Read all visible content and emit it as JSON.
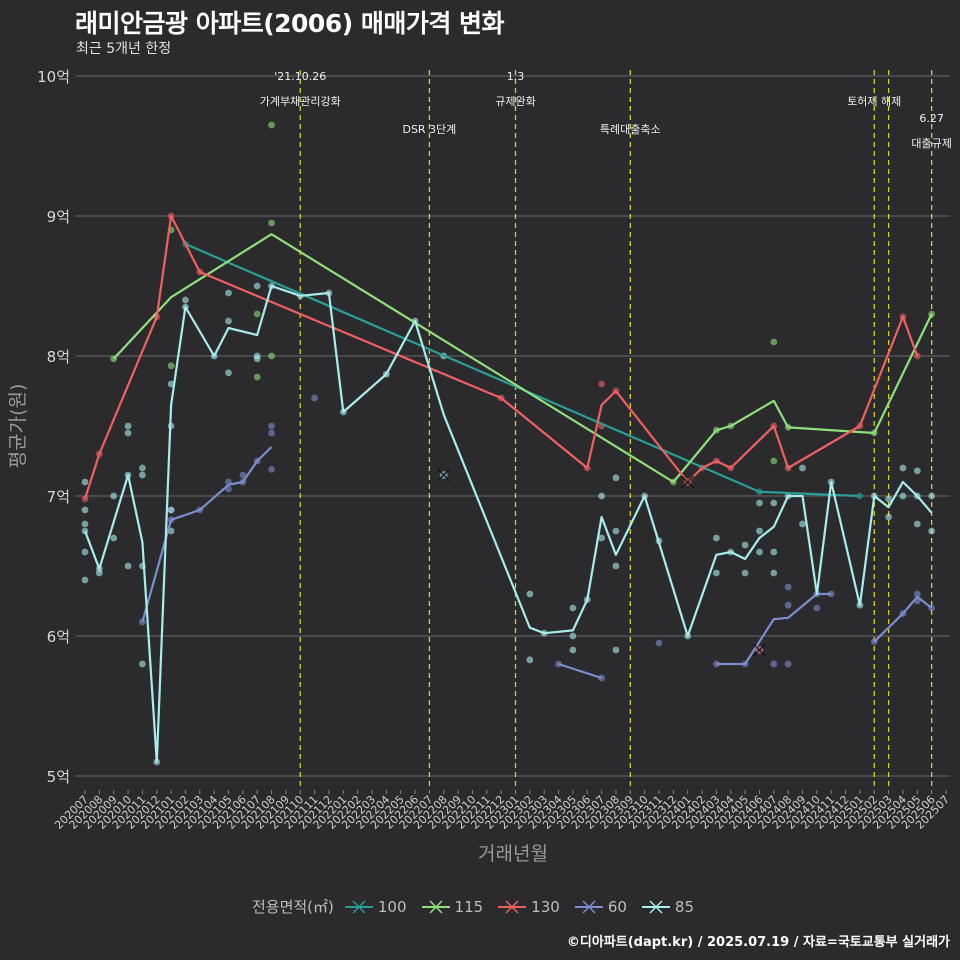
{
  "title": "래미안금광 아파트(2006) 매매가격 변화",
  "subtitle": "최근 5개년 한정",
  "caption": "©디아파트(dapt.kr) / 2025.07.19 / 자료=국토교통부 실거래가",
  "legend_title": "전용면적(㎡)",
  "chart_data": {
    "type": "line",
    "xlabel": "거래년월",
    "ylabel": "평균가(원)",
    "ylim": [
      4.85,
      10.1
    ],
    "yticks": [
      {
        "v": 5,
        "label": "5억"
      },
      {
        "v": 6,
        "label": "6억"
      },
      {
        "v": 7,
        "label": "7억"
      },
      {
        "v": 8,
        "label": "8억"
      },
      {
        "v": 9,
        "label": "9억"
      },
      {
        "v": 10,
        "label": "10억"
      }
    ],
    "months": [
      "202007",
      "202008",
      "202009",
      "202010",
      "202011",
      "202012",
      "202101",
      "202102",
      "202103",
      "202104",
      "202105",
      "202106",
      "202107",
      "202108",
      "202109",
      "202110",
      "202111",
      "202112",
      "202201",
      "202202",
      "202203",
      "202204",
      "202205",
      "202206",
      "202207",
      "202208",
      "202209",
      "202210",
      "202211",
      "202212",
      "202301",
      "202302",
      "202303",
      "202304",
      "202305",
      "202306",
      "202307",
      "202308",
      "202309",
      "202310",
      "202311",
      "202312",
      "202401",
      "202402",
      "202403",
      "202404",
      "202405",
      "202406",
      "202407",
      "202408",
      "202409",
      "202410",
      "202411",
      "202412",
      "202501",
      "202502",
      "202503",
      "202504",
      "202505",
      "202506",
      "202507"
    ],
    "grid": true,
    "legend": "bottom",
    "events": [
      {
        "month": "202110",
        "lines": [
          "'21.10.26",
          "가계부채관리강화"
        ],
        "ypos": [
          10.0,
          9.82
        ]
      },
      {
        "month": "202207",
        "lines": [
          "DSR 3단계"
        ],
        "ypos": [
          9.62
        ]
      },
      {
        "month": "202301",
        "lines": [
          "1.3",
          "규제완화"
        ],
        "ypos": [
          10.0,
          9.82
        ]
      },
      {
        "month": "202309",
        "lines": [
          "특례대출축소"
        ],
        "ypos": [
          9.62
        ]
      },
      {
        "month": "202502",
        "lines": [
          "토허제 해제"
        ],
        "ypos": [
          9.82
        ]
      },
      {
        "month": "202503",
        "lines": [],
        "ypos": []
      },
      {
        "month": "202506",
        "lines": [
          "6.27",
          "대출규제"
        ],
        "ypos": [
          9.7,
          9.52
        ]
      }
    ],
    "series": [
      {
        "name": "100",
        "color": "#2a9d96",
        "line": [
          [
            "202102",
            8.8
          ],
          [
            "202406",
            7.03
          ],
          [
            "202501",
            7.0
          ]
        ],
        "points": [
          [
            "202102",
            8.8
          ],
          [
            "202406",
            7.03
          ],
          [
            "202501",
            7.0
          ]
        ]
      },
      {
        "name": "115",
        "color": "#8fe07a",
        "line": [
          [
            "202009",
            7.98
          ],
          [
            "202101",
            8.42
          ],
          [
            "202108",
            8.87
          ],
          [
            "202312",
            7.1
          ],
          [
            "202403",
            7.47
          ],
          [
            "202404",
            7.5
          ],
          [
            "202407",
            7.68
          ],
          [
            "202408",
            7.49
          ],
          [
            "202502",
            7.45
          ],
          [
            "202506",
            8.3
          ]
        ],
        "points": [
          [
            "202009",
            7.98
          ],
          [
            "202101",
            7.93
          ],
          [
            "202101",
            8.9
          ],
          [
            "202108",
            9.65
          ],
          [
            "202108",
            8.95
          ],
          [
            "202108",
            8.0
          ],
          [
            "202107",
            7.85
          ],
          [
            "202107",
            8.3
          ],
          [
            "202407",
            8.1
          ],
          [
            "202407",
            7.25
          ],
          [
            "202312",
            7.1
          ],
          [
            "202403",
            7.47
          ],
          [
            "202404",
            7.5
          ],
          [
            "202408",
            7.49
          ],
          [
            "202502",
            7.45
          ],
          [
            "202506",
            8.3
          ]
        ]
      },
      {
        "name": "130",
        "color": "#f06060",
        "line": [
          [
            "202007",
            6.98
          ],
          [
            "202008",
            7.3
          ],
          [
            "202012",
            8.28
          ],
          [
            "202101",
            9.0
          ],
          [
            "202103",
            8.6
          ],
          [
            "202212",
            7.7
          ],
          [
            "202306",
            7.2
          ],
          [
            "202307",
            7.65
          ],
          [
            "202308",
            7.75
          ],
          [
            "202401",
            7.1
          ],
          [
            "202402",
            7.2
          ],
          [
            "202403",
            7.25
          ],
          [
            "202404",
            7.2
          ],
          [
            "202407",
            7.5
          ],
          [
            "202408",
            7.2
          ],
          [
            "202501",
            7.5
          ],
          [
            "202504",
            8.28
          ],
          [
            "202505",
            8.0
          ]
        ],
        "points": [
          [
            "202007",
            6.98
          ],
          [
            "202008",
            7.3
          ],
          [
            "202012",
            8.28
          ],
          [
            "202101",
            9.0
          ],
          [
            "202103",
            8.6
          ],
          [
            "202212",
            7.7
          ],
          [
            "202306",
            7.2
          ],
          [
            "202307",
            7.8
          ],
          [
            "202307",
            7.5
          ],
          [
            "202308",
            7.75
          ],
          [
            "202402",
            7.2
          ],
          [
            "202403",
            7.25
          ],
          [
            "202404",
            7.2
          ],
          [
            "202407",
            7.5
          ],
          [
            "202408",
            7.2
          ],
          [
            "202501",
            7.5
          ],
          [
            "202504",
            8.28
          ],
          [
            "202505",
            8.0
          ]
        ]
      },
      {
        "name": "60",
        "color": "#7b8fcf",
        "line": [
          [
            "202011",
            6.1
          ],
          [
            "202101",
            6.83
          ],
          [
            "202103",
            6.9
          ],
          [
            "202105",
            7.08
          ],
          [
            "202106",
            7.1
          ],
          [
            "202107",
            7.25
          ],
          [
            "202108",
            7.35
          ]
        ],
        "line2": [
          [
            "202304",
            5.8
          ],
          [
            "202307",
            5.7
          ]
        ],
        "line3": [
          [
            "202403",
            5.8
          ],
          [
            "202405",
            5.8
          ],
          [
            "202407",
            6.12
          ],
          [
            "202408",
            6.13
          ],
          [
            "202410",
            6.3
          ],
          [
            "202411",
            6.3
          ]
        ],
        "line4": [
          [
            "202502",
            5.96
          ],
          [
            "202504",
            6.16
          ],
          [
            "202505",
            6.28
          ],
          [
            "202506",
            6.2
          ]
        ],
        "points": [
          [
            "202011",
            6.1
          ],
          [
            "202101",
            6.9
          ],
          [
            "202101",
            6.83
          ],
          [
            "202103",
            6.9
          ],
          [
            "202105",
            7.05
          ],
          [
            "202105",
            7.1
          ],
          [
            "202106",
            7.1
          ],
          [
            "202106",
            7.15
          ],
          [
            "202107",
            7.25
          ],
          [
            "202108",
            7.45
          ],
          [
            "202108",
            7.5
          ],
          [
            "202108",
            7.19
          ],
          [
            "202111",
            7.7
          ],
          [
            "202304",
            5.8
          ],
          [
            "202307",
            5.7
          ],
          [
            "202311",
            5.95
          ],
          [
            "202403",
            5.8
          ],
          [
            "202405",
            5.8
          ],
          [
            "202406",
            5.9
          ],
          [
            "202407",
            5.8
          ],
          [
            "202408",
            5.8
          ],
          [
            "202408",
            6.22
          ],
          [
            "202408",
            6.35
          ],
          [
            "202410",
            6.2
          ],
          [
            "202410",
            6.3
          ],
          [
            "202411",
            6.3
          ],
          [
            "202502",
            5.96
          ],
          [
            "202504",
            6.16
          ],
          [
            "202505",
            6.3
          ],
          [
            "202505",
            6.25
          ],
          [
            "202506",
            6.2
          ]
        ]
      },
      {
        "name": "85",
        "color": "#a8ecec",
        "line": [
          [
            "202007",
            6.75
          ],
          [
            "202008",
            6.48
          ],
          [
            "202010",
            7.15
          ],
          [
            "202011",
            6.67
          ],
          [
            "202012",
            5.1
          ],
          [
            "202101",
            7.65
          ],
          [
            "202102",
            8.35
          ],
          [
            "202104",
            8.0
          ],
          [
            "202105",
            8.2
          ],
          [
            "202107",
            8.15
          ],
          [
            "202108",
            8.5
          ],
          [
            "202110",
            8.43
          ],
          [
            "202112",
            8.45
          ],
          [
            "202201",
            7.6
          ],
          [
            "202204",
            7.87
          ],
          [
            "202206",
            8.25
          ],
          [
            "202208",
            7.58
          ],
          [
            "202302",
            6.06
          ],
          [
            "202303",
            6.02
          ],
          [
            "202305",
            6.04
          ],
          [
            "202306",
            6.26
          ],
          [
            "202307",
            6.85
          ],
          [
            "202308",
            6.58
          ],
          [
            "202310",
            7.0
          ],
          [
            "202401",
            6.0
          ],
          [
            "202403",
            6.58
          ],
          [
            "202404",
            6.6
          ],
          [
            "202405",
            6.55
          ],
          [
            "202406",
            6.7
          ],
          [
            "202407",
            6.78
          ],
          [
            "202408",
            7.0
          ],
          [
            "202409",
            7.0
          ],
          [
            "202410",
            6.3
          ],
          [
            "202411",
            7.1
          ],
          [
            "202501",
            6.22
          ],
          [
            "202502",
            7.0
          ],
          [
            "202503",
            6.92
          ],
          [
            "202504",
            7.1
          ],
          [
            "202505",
            7.0
          ],
          [
            "202506",
            6.88
          ]
        ],
        "points": [
          [
            "202007",
            7.1
          ],
          [
            "202007",
            6.9
          ],
          [
            "202007",
            6.8
          ],
          [
            "202007",
            6.75
          ],
          [
            "202007",
            6.6
          ],
          [
            "202007",
            6.4
          ],
          [
            "202008",
            6.48
          ],
          [
            "202008",
            6.45
          ],
          [
            "202009",
            7.0
          ],
          [
            "202009",
            6.7
          ],
          [
            "202010",
            7.5
          ],
          [
            "202010",
            7.45
          ],
          [
            "202010",
            7.15
          ],
          [
            "202010",
            6.5
          ],
          [
            "202011",
            7.2
          ],
          [
            "202011",
            7.15
          ],
          [
            "202011",
            6.5
          ],
          [
            "202011",
            5.8
          ],
          [
            "202012",
            5.1
          ],
          [
            "202101",
            7.8
          ],
          [
            "202101",
            7.5
          ],
          [
            "202101",
            6.9
          ],
          [
            "202101",
            6.75
          ],
          [
            "202102",
            8.4
          ],
          [
            "202102",
            8.35
          ],
          [
            "202104",
            8.0
          ],
          [
            "202105",
            8.45
          ],
          [
            "202105",
            8.25
          ],
          [
            "202105",
            7.88
          ],
          [
            "202107",
            8.5
          ],
          [
            "202107",
            8.0
          ],
          [
            "202107",
            7.98
          ],
          [
            "202108",
            8.5
          ],
          [
            "202110",
            8.43
          ],
          [
            "202112",
            8.45
          ],
          [
            "202201",
            7.6
          ],
          [
            "202204",
            7.87
          ],
          [
            "202206",
            8.25
          ],
          [
            "202208",
            8.0
          ],
          [
            "202302",
            6.3
          ],
          [
            "202302",
            5.83
          ],
          [
            "202303",
            6.02
          ],
          [
            "202305",
            6.2
          ],
          [
            "202305",
            6.0
          ],
          [
            "202305",
            5.9
          ],
          [
            "202306",
            6.26
          ],
          [
            "202307",
            7.0
          ],
          [
            "202307",
            6.7
          ],
          [
            "202308",
            7.13
          ],
          [
            "202308",
            6.75
          ],
          [
            "202308",
            6.5
          ],
          [
            "202308",
            5.9
          ],
          [
            "202310",
            7.0
          ],
          [
            "202311",
            6.68
          ],
          [
            "202401",
            6.0
          ],
          [
            "202403",
            6.7
          ],
          [
            "202403",
            6.45
          ],
          [
            "202404",
            6.6
          ],
          [
            "202405",
            6.65
          ],
          [
            "202405",
            6.45
          ],
          [
            "202406",
            6.95
          ],
          [
            "202406",
            6.75
          ],
          [
            "202406",
            6.6
          ],
          [
            "202407",
            6.95
          ],
          [
            "202407",
            6.6
          ],
          [
            "202407",
            6.45
          ],
          [
            "202408",
            7.0
          ],
          [
            "202409",
            7.2
          ],
          [
            "202409",
            6.8
          ],
          [
            "202411",
            7.1
          ],
          [
            "202501",
            6.22
          ],
          [
            "202502",
            7.0
          ],
          [
            "202503",
            6.98
          ],
          [
            "202503",
            6.85
          ],
          [
            "202504",
            7.2
          ],
          [
            "202504",
            7.0
          ],
          [
            "202505",
            7.18
          ],
          [
            "202505",
            7.0
          ],
          [
            "202505",
            6.8
          ],
          [
            "202506",
            7.0
          ],
          [
            "202506",
            6.75
          ]
        ]
      }
    ],
    "cancelled": [
      {
        "month": "202208",
        "value": 7.15,
        "color": "#a8ecec"
      },
      {
        "month": "202401",
        "value": 7.1,
        "color": "#f06060"
      },
      {
        "month": "202406",
        "value": 5.9,
        "color": "#f06060"
      }
    ]
  }
}
